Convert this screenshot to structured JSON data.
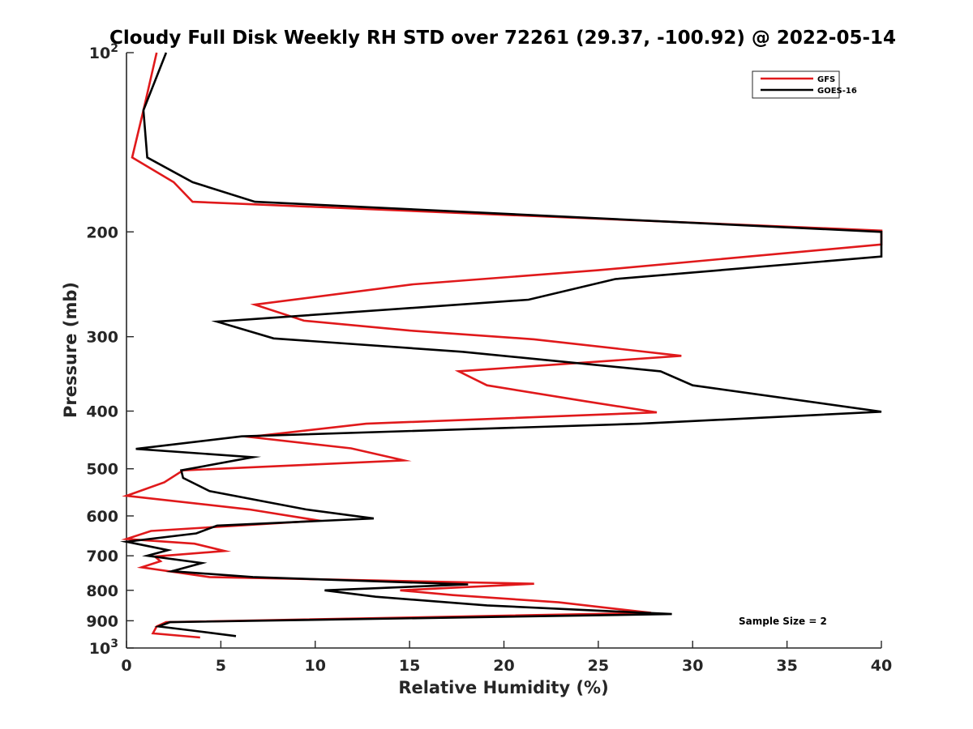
{
  "chart_data": {
    "type": "line",
    "title": "Cloudy Full Disk Weekly RH STD over 72261 (29.37, -100.92) @ 2022-05-14",
    "xlabel": "Relative Humidity (%)",
    "ylabel": "Pressure (mb)",
    "xlim": [
      0,
      40
    ],
    "ylim": [
      100,
      1000
    ],
    "y_scale": "log",
    "y_reversed": true,
    "grid": false,
    "legend_position": "top-right",
    "xticks": [
      "0",
      "5",
      "10",
      "15",
      "20",
      "25",
      "30",
      "35",
      "40"
    ],
    "yticks": [
      {
        "value": 100,
        "base": "10",
        "exp": "2"
      },
      {
        "value": 200,
        "label": "200"
      },
      {
        "value": 300,
        "label": "300"
      },
      {
        "value": 400,
        "label": "400"
      },
      {
        "value": 500,
        "label": "500"
      },
      {
        "value": 600,
        "label": "600"
      },
      {
        "value": 700,
        "label": "700"
      },
      {
        "value": 800,
        "label": "800"
      },
      {
        "value": 900,
        "label": "900"
      },
      {
        "value": 1000,
        "base": "10",
        "exp": "3"
      }
    ],
    "annotation": "Sample Size = 2",
    "series": [
      {
        "name": "GFS",
        "color": "#e0191b",
        "points": [
          [
            1.6,
            100
          ],
          [
            0.9,
            125
          ],
          [
            0.3,
            150
          ],
          [
            2.5,
            165
          ],
          [
            3.5,
            178
          ],
          [
            40,
            199
          ],
          [
            40,
            210
          ],
          [
            25,
            232
          ],
          [
            15.2,
            245
          ],
          [
            6.8,
            265
          ],
          [
            9.4,
            282
          ],
          [
            15,
            293
          ],
          [
            21.6,
            303
          ],
          [
            29.4,
            323
          ],
          [
            17.6,
            343
          ],
          [
            19.1,
            362
          ],
          [
            24.3,
            385
          ],
          [
            28.1,
            402
          ],
          [
            12.7,
            420
          ],
          [
            6.5,
            442
          ],
          [
            11.9,
            462
          ],
          [
            14.7,
            484
          ],
          [
            3,
            503
          ],
          [
            2,
            527
          ],
          [
            0,
            555
          ],
          [
            6.5,
            585
          ],
          [
            10.2,
            611
          ],
          [
            1.3,
            636
          ],
          [
            0,
            656
          ],
          [
            3.6,
            668
          ],
          [
            5.2,
            687
          ],
          [
            1.5,
            702
          ],
          [
            1.8,
            715
          ],
          [
            0.8,
            732
          ],
          [
            4.4,
            760
          ],
          [
            21.6,
            780
          ],
          [
            14.5,
            800
          ],
          [
            17.3,
            815
          ],
          [
            22.9,
            838
          ],
          [
            27.8,
            873
          ],
          [
            2.1,
            905
          ],
          [
            1.6,
            920
          ],
          [
            1.4,
            945
          ],
          [
            3.9,
            960
          ]
        ]
      },
      {
        "name": "GOES-16",
        "color": "#000000",
        "points": [
          [
            2.1,
            100
          ],
          [
            0.9,
            125
          ],
          [
            1.1,
            150
          ],
          [
            3.5,
            165
          ],
          [
            6.8,
            178
          ],
          [
            40,
            200
          ],
          [
            40,
            220
          ],
          [
            25.9,
            240
          ],
          [
            21.3,
            260
          ],
          [
            4.8,
            283
          ],
          [
            7.8,
            302
          ],
          [
            17.8,
            318
          ],
          [
            28.3,
            343
          ],
          [
            30,
            362
          ],
          [
            40,
            401
          ],
          [
            27.2,
            420
          ],
          [
            6.1,
            441
          ],
          [
            0.5,
            463
          ],
          [
            6.7,
            478
          ],
          [
            2.9,
            503
          ],
          [
            3,
            518
          ],
          [
            4.4,
            545
          ],
          [
            9.5,
            585
          ],
          [
            13.1,
            606
          ],
          [
            4.8,
            623
          ],
          [
            3.7,
            642
          ],
          [
            0,
            663
          ],
          [
            2.2,
            685
          ],
          [
            1.1,
            700
          ],
          [
            4,
            720
          ],
          [
            2.4,
            743
          ],
          [
            6.7,
            760
          ],
          [
            18.1,
            782
          ],
          [
            10.5,
            800
          ],
          [
            13.2,
            820
          ],
          [
            19.1,
            848
          ],
          [
            28.9,
            877
          ],
          [
            2.3,
            905
          ],
          [
            1.7,
            920
          ],
          [
            3.5,
            935
          ],
          [
            5.8,
            955
          ]
        ]
      }
    ]
  }
}
